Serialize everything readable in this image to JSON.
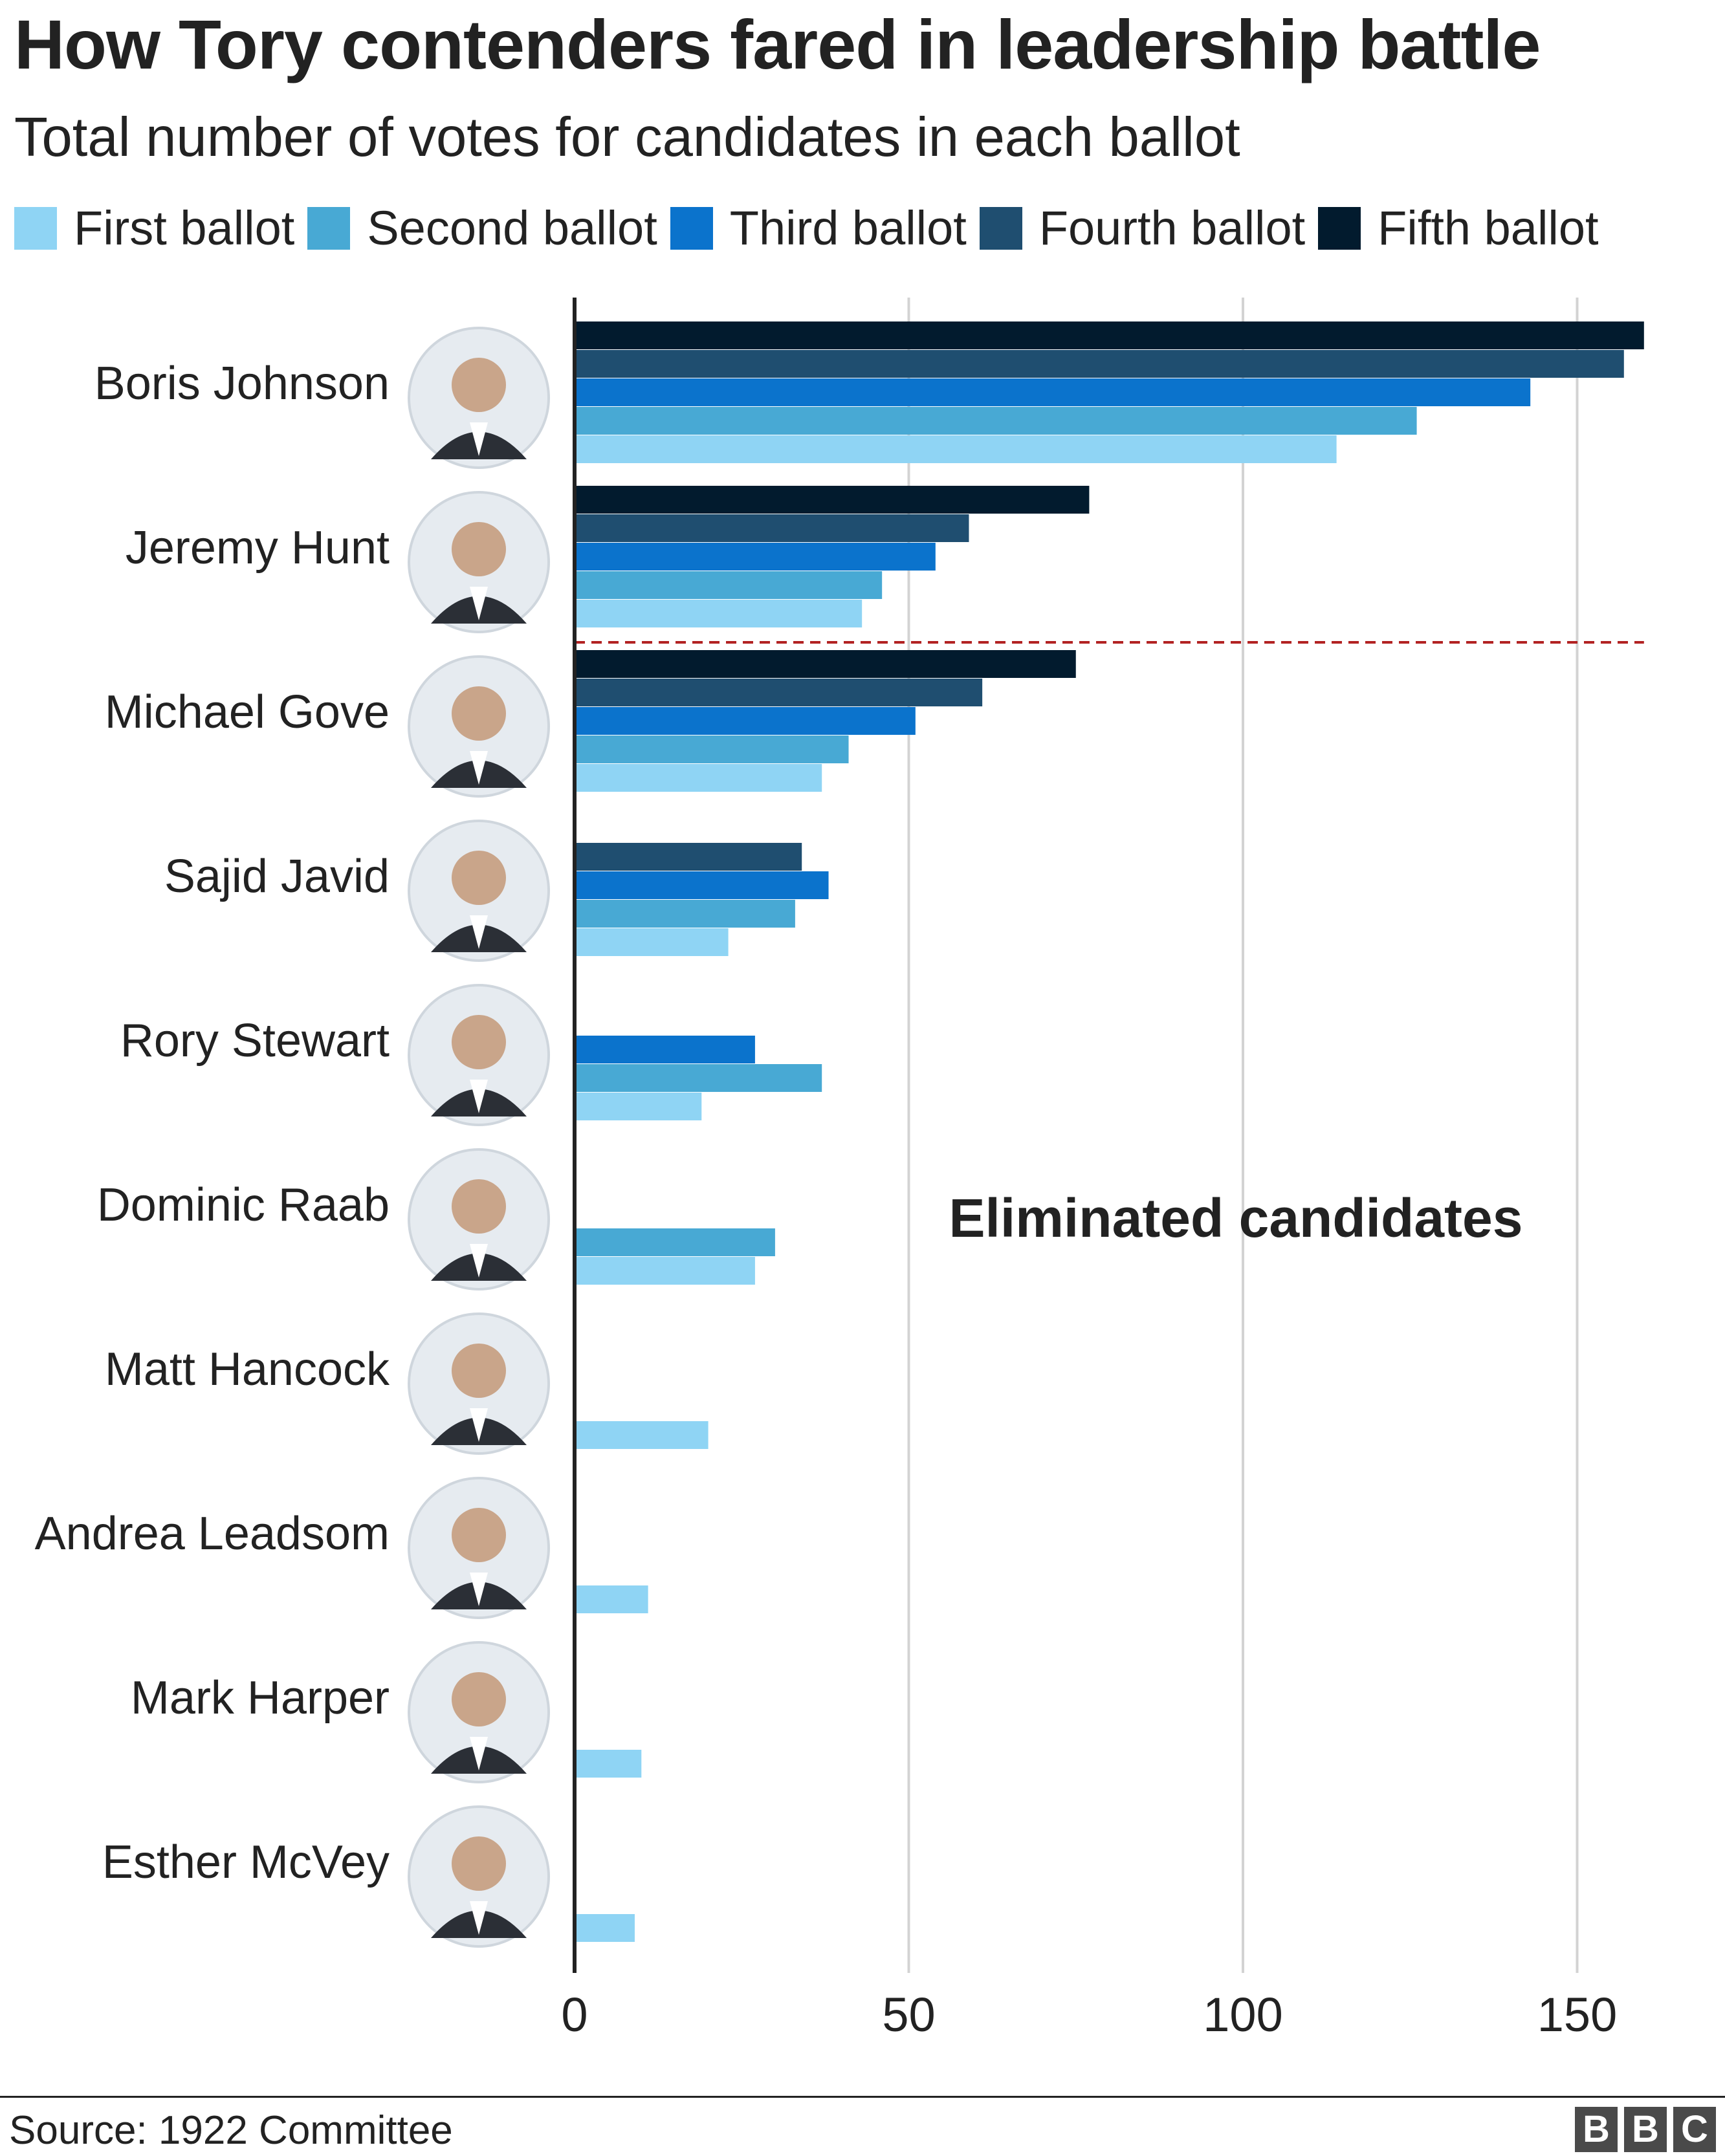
{
  "chart_data": {
    "type": "bar",
    "orientation": "horizontal",
    "title": "How Tory contenders fared in leadership battle",
    "subtitle": "Total number of votes for candidates in each ballot",
    "categories": [
      "Boris Johnson",
      "Jeremy Hunt",
      "Michael Gove",
      "Sajid Javid",
      "Rory Stewart",
      "Dominic Raab",
      "Matt Hancock",
      "Andrea Leadsom",
      "Mark Harper",
      "Esther McVey"
    ],
    "series": [
      {
        "name": "First ballot",
        "color": "#8fd4f4",
        "values": [
          114,
          43,
          37,
          23,
          19,
          27,
          20,
          11,
          10,
          9
        ]
      },
      {
        "name": "Second ballot",
        "color": "#48a9d4",
        "values": [
          126,
          46,
          41,
          33,
          37,
          30,
          null,
          null,
          null,
          null
        ]
      },
      {
        "name": "Third ballot",
        "color": "#0b73cc",
        "values": [
          143,
          54,
          51,
          38,
          27,
          null,
          null,
          null,
          null,
          null
        ]
      },
      {
        "name": "Fourth ballot",
        "color": "#1f4e70",
        "values": [
          157,
          59,
          61,
          34,
          null,
          null,
          null,
          null,
          null,
          null
        ]
      },
      {
        "name": "Fifth ballot",
        "color": "#021b2e",
        "values": [
          160,
          77,
          75,
          null,
          null,
          null,
          null,
          null,
          null,
          null
        ]
      }
    ],
    "xlim": [
      0,
      160
    ],
    "xticks": [
      0,
      50,
      100,
      150
    ],
    "xtick_labels": [
      "0",
      "50",
      "100",
      "150"
    ],
    "grid": true,
    "legend_position": "top",
    "annotations": [
      {
        "text": "Eliminated candidates",
        "cutoff_after_category": "Jeremy Hunt",
        "line_color": "#b22222"
      }
    ],
    "source": "Source: 1922 Committee"
  },
  "branding": {
    "logo_letters": [
      "B",
      "B",
      "C"
    ]
  },
  "icons": {
    "candidate_photo": "person-portrait-icon"
  }
}
